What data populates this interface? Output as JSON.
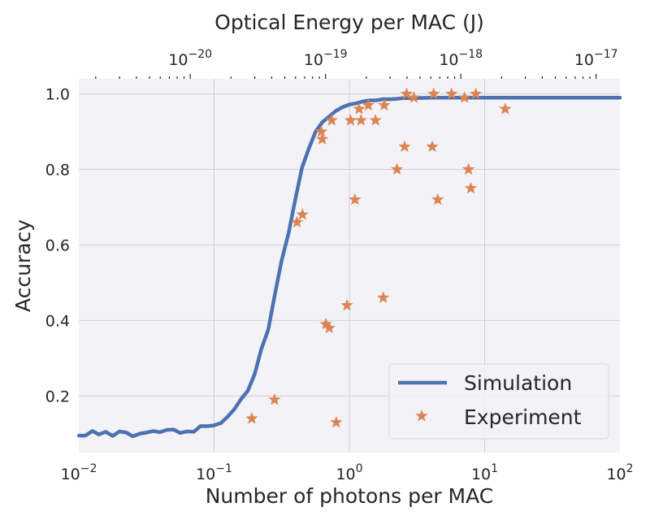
{
  "chart_data": {
    "type": "scatter",
    "title": "",
    "xlabel": "Number of photons per MAC",
    "ylabel": "Accuracy",
    "x2label": "Optical Energy per MAC (J)",
    "xscale": "log",
    "x2scale": "log",
    "xlim": [
      0.01,
      100
    ],
    "x2lim": [
      1.5e-21,
      1.5e-17
    ],
    "ylim": [
      0.05,
      1.04
    ],
    "grid": true,
    "legend_position": "lower-right",
    "x_ticks": [
      {
        "value": 0.01,
        "base": "10",
        "exp": "−2"
      },
      {
        "value": 0.1,
        "base": "10",
        "exp": "−1"
      },
      {
        "value": 1,
        "base": "10",
        "exp": "0"
      },
      {
        "value": 10,
        "base": "10",
        "exp": "1"
      },
      {
        "value": 100,
        "base": "10",
        "exp": "2"
      }
    ],
    "x2_ticks": [
      {
        "value": 1e-20,
        "base": "10",
        "exp": "−20"
      },
      {
        "value": 1e-19,
        "base": "10",
        "exp": "−19"
      },
      {
        "value": 1e-18,
        "base": "10",
        "exp": "−18"
      },
      {
        "value": 1e-17,
        "base": "10",
        "exp": "−17"
      }
    ],
    "y_ticks": [
      {
        "value": 0.2,
        "label": "0.2"
      },
      {
        "value": 0.4,
        "label": "0.4"
      },
      {
        "value": 0.6,
        "label": "0.6"
      },
      {
        "value": 0.8,
        "label": "0.8"
      },
      {
        "value": 1.0,
        "label": "1.0"
      }
    ],
    "colors": {
      "simulation": "#4c72b0",
      "experiment": "#dd8452",
      "plot_background": "#f2f2f7",
      "grid": "#cfcfd6"
    },
    "series": [
      {
        "name": "Simulation",
        "kind": "line",
        "points": [
          [
            0.01,
            0.095
          ],
          [
            0.0112,
            0.095
          ],
          [
            0.0126,
            0.107
          ],
          [
            0.0141,
            0.098
          ],
          [
            0.0158,
            0.105
          ],
          [
            0.0178,
            0.094
          ],
          [
            0.02,
            0.106
          ],
          [
            0.0224,
            0.103
          ],
          [
            0.0251,
            0.093
          ],
          [
            0.0282,
            0.1
          ],
          [
            0.0316,
            0.103
          ],
          [
            0.0355,
            0.107
          ],
          [
            0.0398,
            0.104
          ],
          [
            0.0447,
            0.11
          ],
          [
            0.0501,
            0.111
          ],
          [
            0.0562,
            0.102
          ],
          [
            0.0631,
            0.106
          ],
          [
            0.0708,
            0.105
          ],
          [
            0.0794,
            0.12
          ],
          [
            0.0891,
            0.12
          ],
          [
            0.1,
            0.122
          ],
          [
            0.1122,
            0.128
          ],
          [
            0.1259,
            0.145
          ],
          [
            0.1413,
            0.165
          ],
          [
            0.1585,
            0.192
          ],
          [
            0.1778,
            0.214
          ],
          [
            0.1995,
            0.258
          ],
          [
            0.2239,
            0.325
          ],
          [
            0.2512,
            0.375
          ],
          [
            0.2818,
            0.47
          ],
          [
            0.3162,
            0.56
          ],
          [
            0.3548,
            0.63
          ],
          [
            0.3981,
            0.72
          ],
          [
            0.4467,
            0.805
          ],
          [
            0.5012,
            0.855
          ],
          [
            0.5623,
            0.9
          ],
          [
            0.631,
            0.925
          ],
          [
            0.7079,
            0.94
          ],
          [
            0.7943,
            0.955
          ],
          [
            0.8913,
            0.965
          ],
          [
            1.0,
            0.972
          ],
          [
            1.122,
            0.975
          ],
          [
            1.259,
            0.98
          ],
          [
            1.413,
            0.983
          ],
          [
            1.585,
            0.983
          ],
          [
            1.778,
            0.986
          ],
          [
            1.995,
            0.986
          ],
          [
            2.239,
            0.987
          ],
          [
            2.512,
            0.989
          ],
          [
            3.162,
            0.989
          ],
          [
            3.981,
            0.99
          ],
          [
            5.012,
            0.99
          ],
          [
            6.31,
            0.99
          ],
          [
            7.943,
            0.99
          ],
          [
            10.0,
            0.99
          ],
          [
            15.85,
            0.99
          ],
          [
            25.12,
            0.99
          ],
          [
            39.81,
            0.99
          ],
          [
            63.1,
            0.99
          ],
          [
            100.0,
            0.99
          ]
        ]
      },
      {
        "name": "Experiment",
        "kind": "scatter",
        "marker": "star",
        "points": [
          [
            0.19,
            0.14
          ],
          [
            0.28,
            0.19
          ],
          [
            0.41,
            0.66
          ],
          [
            0.45,
            0.68
          ],
          [
            0.62,
            0.9
          ],
          [
            0.63,
            0.88
          ],
          [
            0.67,
            0.39
          ],
          [
            0.71,
            0.38
          ],
          [
            0.74,
            0.93
          ],
          [
            0.8,
            0.13
          ],
          [
            0.96,
            0.44
          ],
          [
            1.02,
            0.93
          ],
          [
            1.1,
            0.72
          ],
          [
            1.18,
            0.96
          ],
          [
            1.22,
            0.93
          ],
          [
            1.38,
            0.97
          ],
          [
            1.56,
            0.93
          ],
          [
            1.78,
            0.46
          ],
          [
            1.81,
            0.97
          ],
          [
            2.25,
            0.8
          ],
          [
            2.56,
            0.86
          ],
          [
            2.65,
            1.0
          ],
          [
            3.0,
            0.99
          ],
          [
            4.1,
            0.86
          ],
          [
            4.2,
            1.0
          ],
          [
            4.5,
            0.72
          ],
          [
            5.7,
            1.0
          ],
          [
            7.1,
            0.99
          ],
          [
            7.6,
            0.8
          ],
          [
            7.9,
            0.75
          ],
          [
            8.6,
            1.0
          ],
          [
            14.2,
            0.96
          ]
        ]
      }
    ]
  }
}
